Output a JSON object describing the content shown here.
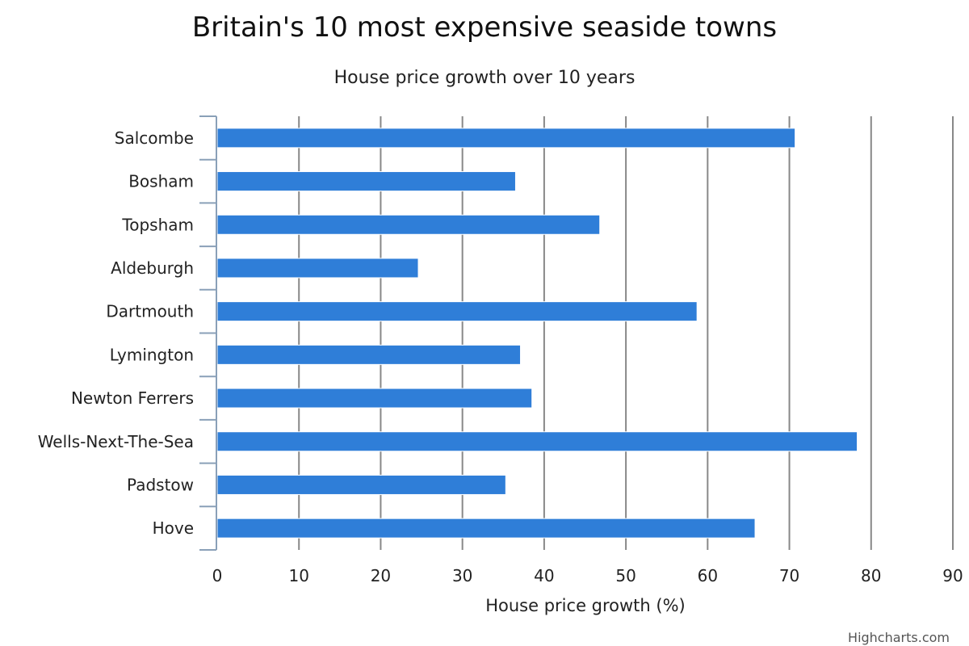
{
  "chart_data": {
    "type": "bar",
    "orientation": "horizontal",
    "title": "Britain's 10 most expensive seaside towns",
    "subtitle": "House price growth over 10 years",
    "xlabel": "House price growth (%)",
    "ylabel": "",
    "categories": [
      "Salcombe",
      "Bosham",
      "Topsham",
      "Aldeburgh",
      "Dartmouth",
      "Lymington",
      "Newton Ferrers",
      "Wells-Next-The-Sea",
      "Padstow",
      "Hove"
    ],
    "values": [
      70.7,
      36.5,
      46.8,
      24.6,
      58.7,
      37.1,
      38.5,
      78.3,
      35.3,
      65.8
    ],
    "xlim": [
      0,
      90
    ],
    "ticks": [
      0,
      10,
      20,
      30,
      40,
      50,
      60,
      70,
      80,
      90
    ],
    "grid": true,
    "bar_color": "#2f7ed8",
    "grid_color": "#888888",
    "axis_color": "#8aa0b8"
  },
  "credits": "Highcharts.com"
}
